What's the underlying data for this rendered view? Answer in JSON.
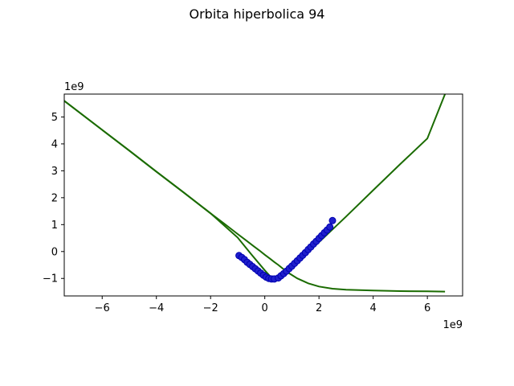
{
  "colors": {
    "curve": "#1a6b00",
    "points": "#1f1fcc",
    "point_edge": "#0000b0",
    "axes": "#000000",
    "background": "#ffffff"
  },
  "chart_data": {
    "type": "scatter",
    "title": "Orbita hiperbolica 94",
    "xlabel": "",
    "ylabel": "",
    "x_scale_label": "1e9",
    "y_scale_label": "1e9",
    "xlim": [
      -7.4,
      7.3
    ],
    "ylim": [
      -1.65,
      5.85
    ],
    "grid": false,
    "x_ticks": [
      -6,
      -4,
      -2,
      0,
      2,
      4,
      6
    ],
    "x_tick_labels": [
      "−6",
      "−4",
      "−2",
      "0",
      "2",
      "4",
      "6"
    ],
    "y_ticks": [
      -1,
      0,
      1,
      2,
      3,
      4,
      5
    ],
    "y_tick_labels": [
      "−1",
      "0",
      "1",
      "2",
      "3",
      "4",
      "5"
    ],
    "series": [
      {
        "kind": "line",
        "x": [
          -7.4,
          -6.0,
          -5.0,
          -4.0,
          -3.0,
          -2.0,
          -1.5,
          -1.0,
          -0.7,
          -0.4,
          -0.2,
          0.0,
          0.2,
          0.35,
          0.5,
          0.7,
          0.9,
          1.2,
          1.6,
          2.0,
          2.5,
          3.0,
          4.0,
          5.0,
          6.0,
          6.65
        ],
        "y": [
          5.6,
          4.52,
          3.75,
          2.97,
          2.2,
          1.42,
          1.04,
          0.65,
          0.42,
          0.19,
          0.04,
          -0.12,
          -0.27,
          -0.39,
          -0.5,
          -0.66,
          -0.81,
          -1.0,
          -1.18,
          -1.3,
          -1.38,
          -1.42,
          -1.45,
          -1.47,
          -1.48,
          -1.49
        ]
      },
      {
        "kind": "line",
        "x": [
          -7.4,
          -6.0,
          -5.0,
          -4.0,
          -3.0,
          -2.0,
          -1.0,
          -0.5,
          0.0,
          0.2,
          0.35,
          0.5,
          0.7,
          1.0,
          1.5,
          2.0,
          2.5,
          3.0,
          4.0,
          5.0,
          6.0,
          6.65
        ],
        "y": [
          5.6,
          4.52,
          3.75,
          2.97,
          2.2,
          1.42,
          0.52,
          -0.1,
          -0.7,
          -0.92,
          -1.0,
          -0.95,
          -0.8,
          -0.55,
          -0.12,
          0.35,
          0.82,
          1.3,
          2.28,
          3.25,
          4.2,
          5.85
        ]
      },
      {
        "kind": "points",
        "x": [
          -0.95,
          -0.85,
          -0.75,
          -0.65,
          -0.55,
          -0.45,
          -0.35,
          -0.25,
          -0.15,
          -0.05,
          0.05,
          0.15,
          0.25,
          0.35,
          0.5,
          0.6,
          0.7,
          0.8,
          0.9,
          1.0,
          1.1,
          1.2,
          1.3,
          1.4,
          1.5,
          1.6,
          1.7,
          1.8,
          1.9,
          2.0,
          2.1,
          2.2,
          2.3,
          2.4,
          2.5
        ],
        "y": [
          -0.15,
          -0.22,
          -0.3,
          -0.4,
          -0.48,
          -0.56,
          -0.64,
          -0.72,
          -0.8,
          -0.88,
          -0.95,
          -1.0,
          -1.02,
          -1.02,
          -0.98,
          -0.9,
          -0.82,
          -0.73,
          -0.63,
          -0.54,
          -0.44,
          -0.34,
          -0.24,
          -0.14,
          -0.04,
          0.07,
          0.17,
          0.28,
          0.38,
          0.49,
          0.59,
          0.7,
          0.8,
          0.91,
          1.15
        ]
      }
    ]
  }
}
